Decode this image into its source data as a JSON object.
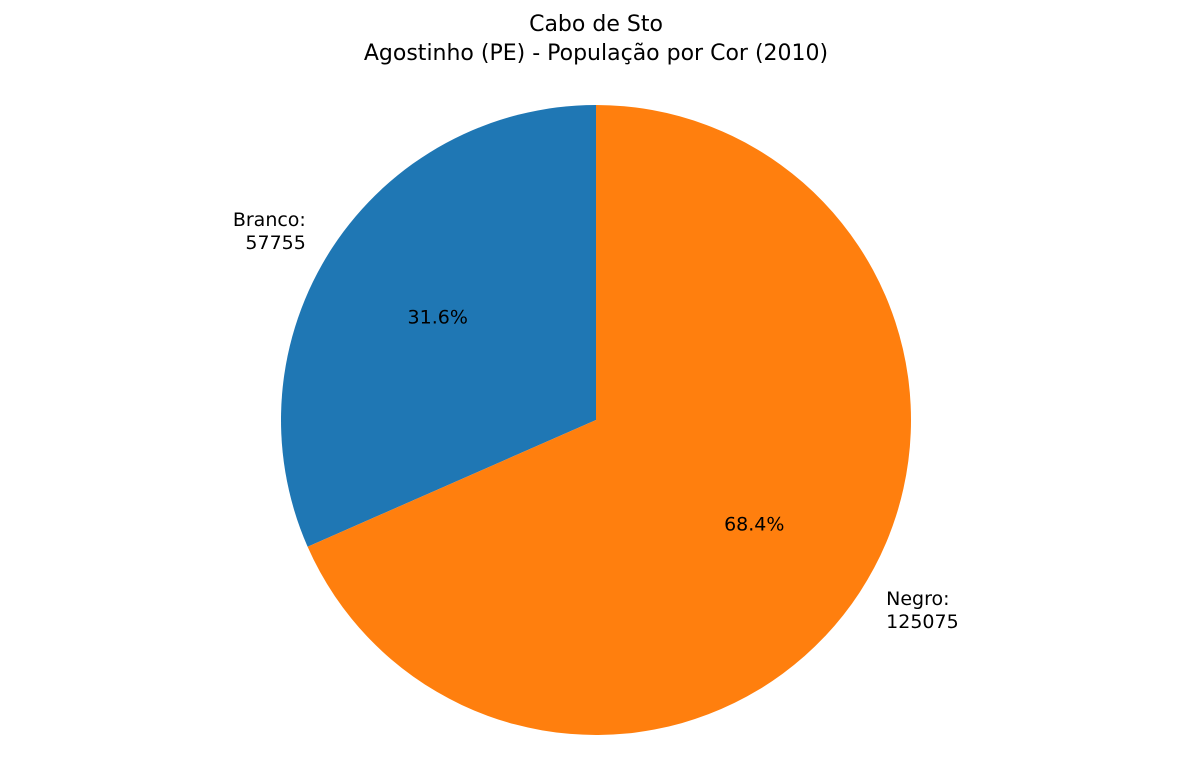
{
  "chart_data": {
    "type": "pie",
    "title_lines": [
      "Cabo de Sto",
      "Agostinho (PE) - População por Cor (2010)"
    ],
    "slices": [
      {
        "label": "Branco:",
        "value": 57755,
        "value_label": "57755",
        "pct_label": "31.6%",
        "color": "#1f77b4"
      },
      {
        "label": "Negro:",
        "value": 125075,
        "value_label": "125075",
        "pct_label": "68.4%",
        "color": "#ff7f0e"
      }
    ],
    "start_angle_deg": 90,
    "direction": "counterclockwise"
  }
}
